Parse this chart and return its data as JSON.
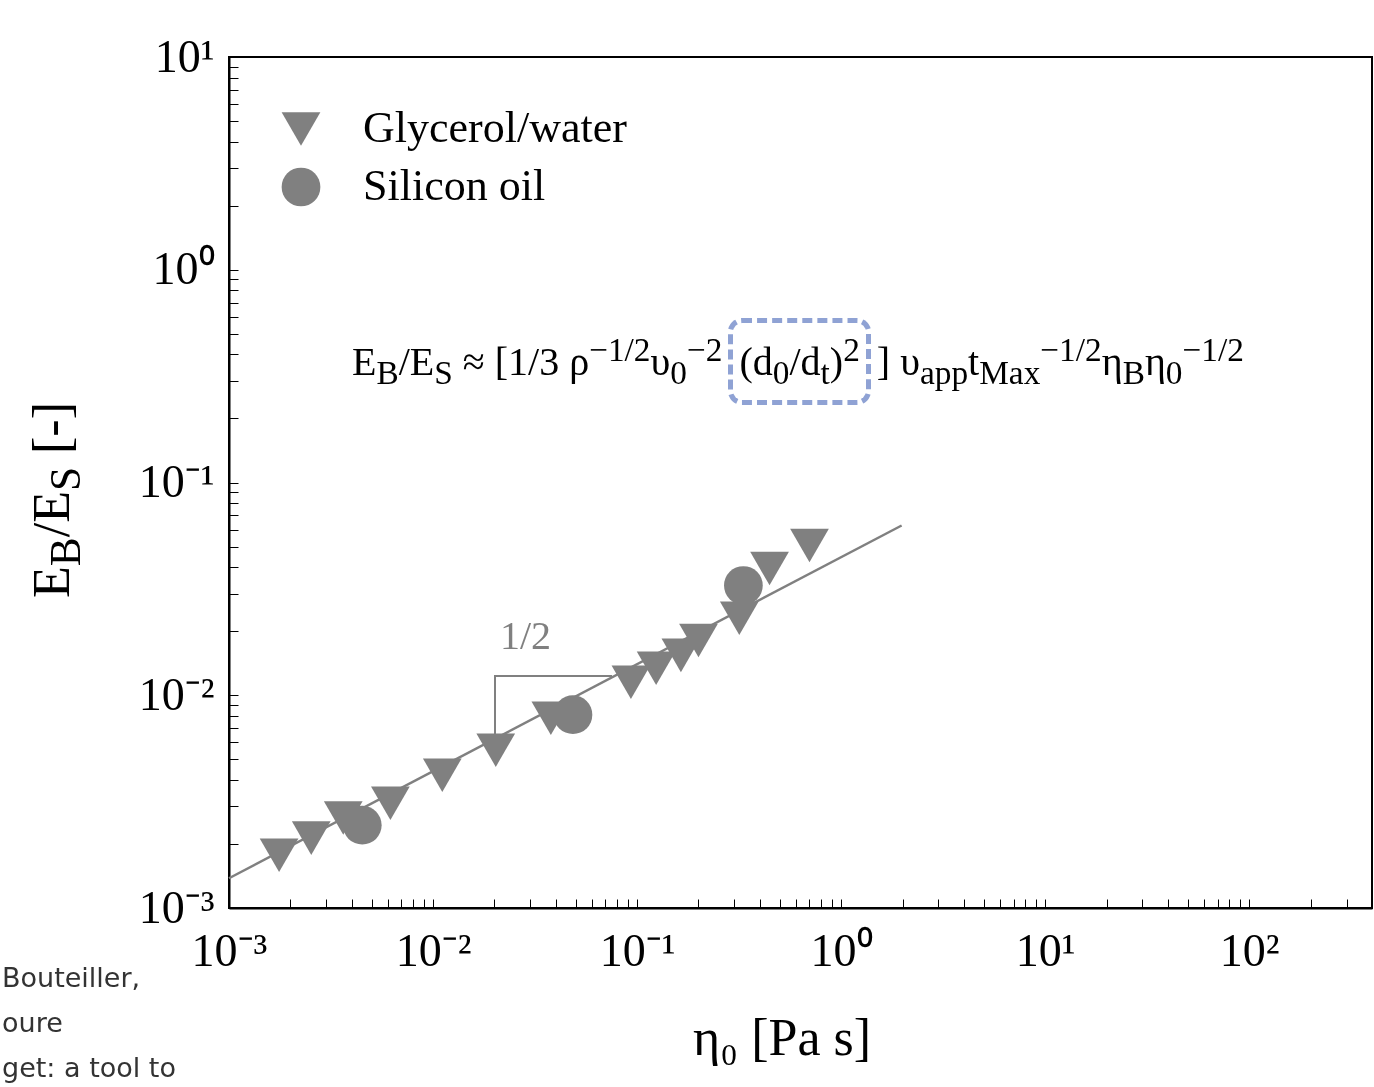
{
  "chart_data": {
    "type": "scatter",
    "xlabel": "η₀ [Pa s]",
    "ylabel": "E$_{B}$/E$_{S}$ [-]",
    "log": "xy",
    "grid": false,
    "legend": "top left",
    "xlim": [
      0.001,
      400
    ],
    "ylim": [
      0.001,
      10
    ],
    "xticks": [
      {
        "value": 0.001,
        "label": "10⁻³"
      },
      {
        "value": 0.002,
        "label": null
      },
      {
        "value": 0.003,
        "label": null
      },
      {
        "value": 0.004,
        "label": null
      },
      {
        "value": 0.005,
        "label": null
      },
      {
        "value": 0.006,
        "label": null
      },
      {
        "value": 0.007,
        "label": null
      },
      {
        "value": 0.008,
        "label": null
      },
      {
        "value": 0.009,
        "label": null
      },
      {
        "value": 0.01,
        "label": "10⁻²"
      },
      {
        "value": 0.02,
        "label": null
      },
      {
        "value": 0.03,
        "label": null
      },
      {
        "value": 0.04,
        "label": null
      },
      {
        "value": 0.05,
        "label": null
      },
      {
        "value": 0.06,
        "label": null
      },
      {
        "value": 0.07,
        "label": null
      },
      {
        "value": 0.08,
        "label": null
      },
      {
        "value": 0.09,
        "label": null
      },
      {
        "value": 0.1,
        "label": "10⁻¹"
      },
      {
        "value": 0.2,
        "label": null
      },
      {
        "value": 0.3,
        "label": null
      },
      {
        "value": 0.4,
        "label": null
      },
      {
        "value": 0.5,
        "label": null
      },
      {
        "value": 0.6,
        "label": null
      },
      {
        "value": 0.7,
        "label": null
      },
      {
        "value": 0.8,
        "label": null
      },
      {
        "value": 0.9,
        "label": null
      },
      {
        "value": 1,
        "label": "10⁰"
      },
      {
        "value": 2,
        "label": null
      },
      {
        "value": 3,
        "label": null
      },
      {
        "value": 4,
        "label": null
      },
      {
        "value": 5,
        "label": null
      },
      {
        "value": 6,
        "label": null
      },
      {
        "value": 7,
        "label": null
      },
      {
        "value": 8,
        "label": null
      },
      {
        "value": 9,
        "label": null
      },
      {
        "value": 10,
        "label": "10¹"
      },
      {
        "value": 20,
        "label": null
      },
      {
        "value": 30,
        "label": null
      },
      {
        "value": 40,
        "label": null
      },
      {
        "value": 50,
        "label": null
      },
      {
        "value": 60,
        "label": null
      },
      {
        "value": 70,
        "label": null
      },
      {
        "value": 80,
        "label": null
      },
      {
        "value": 90,
        "label": null
      },
      {
        "value": 100,
        "label": "10²"
      },
      {
        "value": 200,
        "label": null
      },
      {
        "value": 300,
        "label": null
      }
    ],
    "yticks": [
      {
        "value": 0.001,
        "label": "10⁻³"
      },
      {
        "value": 0.002,
        "label": null
      },
      {
        "value": 0.003,
        "label": null
      },
      {
        "value": 0.004,
        "label": null
      },
      {
        "value": 0.005,
        "label": null
      },
      {
        "value": 0.006,
        "label": null
      },
      {
        "value": 0.007,
        "label": null
      },
      {
        "value": 0.008,
        "label": null
      },
      {
        "value": 0.009,
        "label": null
      },
      {
        "value": 0.01,
        "label": "10⁻²"
      },
      {
        "value": 0.02,
        "label": null
      },
      {
        "value": 0.03,
        "label": null
      },
      {
        "value": 0.04,
        "label": null
      },
      {
        "value": 0.05,
        "label": null
      },
      {
        "value": 0.06,
        "label": null
      },
      {
        "value": 0.07,
        "label": null
      },
      {
        "value": 0.08,
        "label": null
      },
      {
        "value": 0.09,
        "label": null
      },
      {
        "value": 0.1,
        "label": "10⁻¹"
      },
      {
        "value": 0.2,
        "label": null
      },
      {
        "value": 0.3,
        "label": null
      },
      {
        "value": 0.4,
        "label": null
      },
      {
        "value": 0.5,
        "label": null
      },
      {
        "value": 0.6,
        "label": null
      },
      {
        "value": 0.7,
        "label": null
      },
      {
        "value": 0.8,
        "label": null
      },
      {
        "value": 0.9,
        "label": null
      },
      {
        "value": 1,
        "label": "10⁰"
      },
      {
        "value": 2,
        "label": null
      },
      {
        "value": 3,
        "label": null
      },
      {
        "value": 4,
        "label": null
      },
      {
        "value": 5,
        "label": null
      },
      {
        "value": 6,
        "label": null
      },
      {
        "value": 7,
        "label": null
      },
      {
        "value": 8,
        "label": null
      },
      {
        "value": 9,
        "label": null
      },
      {
        "value": 10,
        "label": "10¹"
      }
    ],
    "series": [
      {
        "name": "Glycerol/water",
        "color": "#808080",
        "marker": "triangle",
        "x": [
          0.00176,
          0.00253,
          0.00363,
          0.00618,
          0.0111,
          0.0203,
          0.0378,
          0.0933,
          0.124,
          0.164,
          0.2,
          0.317,
          0.446,
          0.7
        ],
        "values": [
          0.00177,
          0.00213,
          0.00265,
          0.00311,
          0.00421,
          0.00552,
          0.0078,
          0.0115,
          0.0134,
          0.0154,
          0.0181,
          0.023,
          0.0394,
          0.0506
        ]
      },
      {
        "name": "Silicon oil",
        "color": "#808080",
        "marker": "circle",
        "x": [
          0.0045,
          0.0485,
          0.332
        ],
        "values": [
          0.00245,
          0.0081,
          0.0328
        ]
      },
      {
        "type": "line",
        "color": "#808080",
        "line_style": "solid",
        "x": [
          0.001,
          1.98
        ],
        "values": [
          0.00138,
          0.0628
        ]
      }
    ],
    "annotations": [
      "E$_{B}$/E$_{S}$ ≈ [1/3 ρ$^{−1/2}$υ$_{0}$$^{−2}$",
      "(d$_{0}$/d$_{t}$)$^{2}$",
      "] υ$_{app}$t$_{Max}$$^{−1/2}$η$_{B}$η$_{0}$$^{−1/2}$",
      "1/2",
      "Bouteiller,",
      "oure",
      "get: a tool to"
    ]
  }
}
